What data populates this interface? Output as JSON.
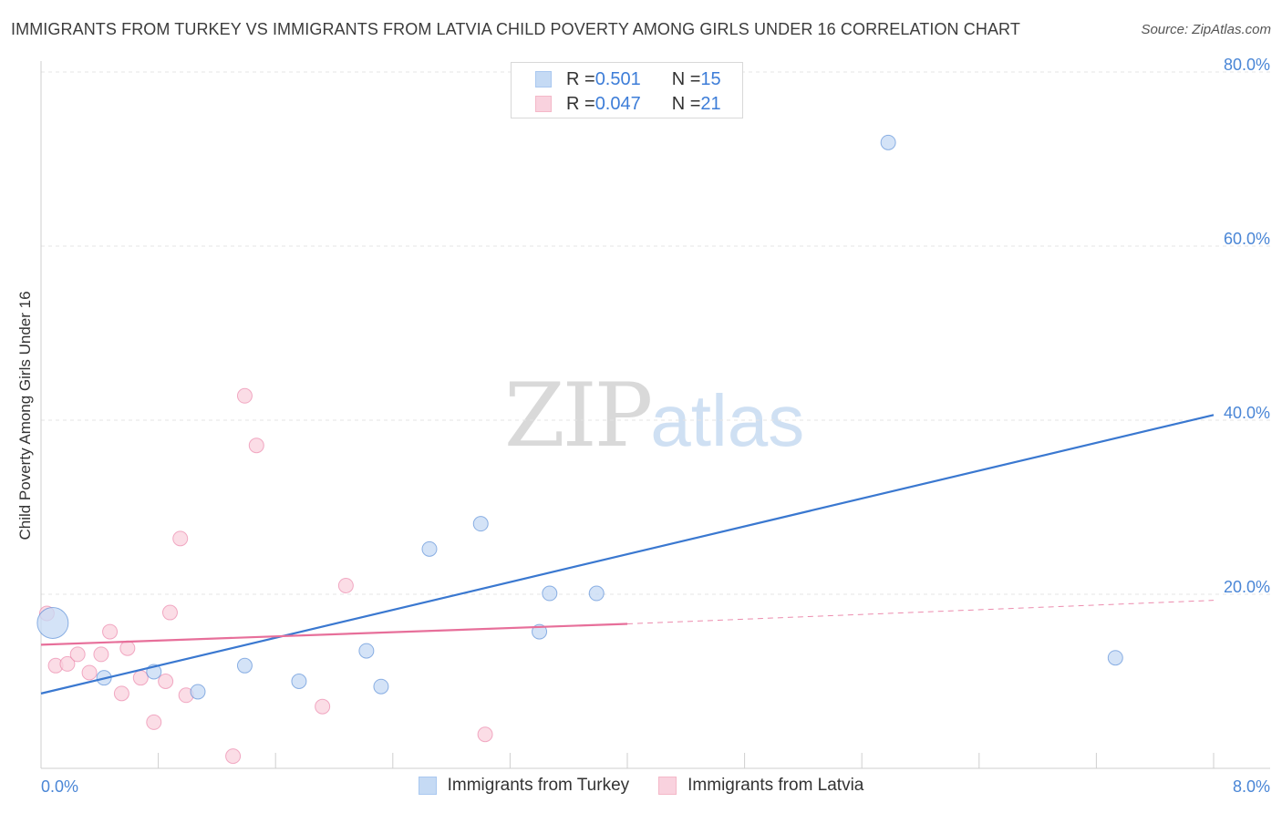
{
  "header": {
    "title": "IMMIGRANTS FROM TURKEY VS IMMIGRANTS FROM LATVIA CHILD POVERTY AMONG GIRLS UNDER 16 CORRELATION CHART",
    "source": "Source: ZipAtlas.com"
  },
  "watermark": {
    "zip": "ZIP",
    "atlas": "atlas"
  },
  "legend": {
    "rows": [
      {
        "r_label": "R = ",
        "r_value": "0.501",
        "n_label": "N = ",
        "n_value": "15",
        "color": "#a9c8f0"
      },
      {
        "r_label": "R = ",
        "r_value": "0.047",
        "n_label": "N = ",
        "n_value": "21",
        "color": "#f4b8c8"
      }
    ]
  },
  "chart_data": {
    "type": "scatter",
    "title": "IMMIGRANTS FROM TURKEY VS IMMIGRANTS FROM LATVIA CHILD POVERTY AMONG GIRLS UNDER 16 CORRELATION CHART",
    "xlabel": "",
    "ylabel": "Child Poverty Among Girls Under 16",
    "xlim": [
      0,
      8
    ],
    "ylim": [
      0,
      80
    ],
    "x_tick_labels": [
      "0.0%",
      "8.0%"
    ],
    "y_ticks": [
      20,
      40,
      60,
      80
    ],
    "y_tick_labels": [
      "20.0%",
      "40.0%",
      "60.0%",
      "80.0%"
    ],
    "grid": true,
    "legend_position": "bottom",
    "series": [
      {
        "name": "Immigrants from Turkey",
        "color": "#3a78d0",
        "fill": "#c5daf4",
        "points": [
          {
            "x": 0.08,
            "y": 16.7,
            "big": true
          },
          {
            "x": 0.43,
            "y": 10.4
          },
          {
            "x": 0.77,
            "y": 11.1
          },
          {
            "x": 1.07,
            "y": 8.8
          },
          {
            "x": 1.39,
            "y": 11.8
          },
          {
            "x": 1.76,
            "y": 10.0
          },
          {
            "x": 2.22,
            "y": 13.5
          },
          {
            "x": 2.32,
            "y": 9.4
          },
          {
            "x": 2.65,
            "y": 25.2
          },
          {
            "x": 3.0,
            "y": 28.1
          },
          {
            "x": 3.4,
            "y": 15.7
          },
          {
            "x": 3.47,
            "y": 20.1
          },
          {
            "x": 3.79,
            "y": 20.1
          },
          {
            "x": 5.78,
            "y": 71.9
          },
          {
            "x": 7.33,
            "y": 12.7
          }
        ],
        "trend": {
          "x": [
            0.0,
            8.0
          ],
          "y": [
            8.6,
            40.6
          ]
        }
      },
      {
        "name": "Immigrants from Latvia",
        "color": "#e76f9a",
        "fill": "#f9d2de",
        "points": [
          {
            "x": 0.04,
            "y": 17.8
          },
          {
            "x": 0.1,
            "y": 11.8
          },
          {
            "x": 0.18,
            "y": 12.0
          },
          {
            "x": 0.25,
            "y": 13.1
          },
          {
            "x": 0.33,
            "y": 11.0
          },
          {
            "x": 0.41,
            "y": 13.1
          },
          {
            "x": 0.47,
            "y": 15.7
          },
          {
            "x": 0.55,
            "y": 8.6
          },
          {
            "x": 0.59,
            "y": 13.8
          },
          {
            "x": 0.68,
            "y": 10.4
          },
          {
            "x": 0.77,
            "y": 5.3
          },
          {
            "x": 0.85,
            "y": 10.0
          },
          {
            "x": 0.88,
            "y": 17.9
          },
          {
            "x": 0.95,
            "y": 26.4
          },
          {
            "x": 0.99,
            "y": 8.4
          },
          {
            "x": 1.31,
            "y": 1.4
          },
          {
            "x": 1.39,
            "y": 42.8
          },
          {
            "x": 1.47,
            "y": 37.1
          },
          {
            "x": 1.92,
            "y": 7.1
          },
          {
            "x": 2.08,
            "y": 21.0
          },
          {
            "x": 3.03,
            "y": 3.9
          }
        ],
        "trend": {
          "x": [
            0.0,
            4.0
          ],
          "y": [
            14.2,
            16.6
          ]
        },
        "trend_extension": {
          "x": [
            4.0,
            8.0
          ],
          "y": [
            16.6,
            19.3
          ]
        }
      }
    ]
  }
}
